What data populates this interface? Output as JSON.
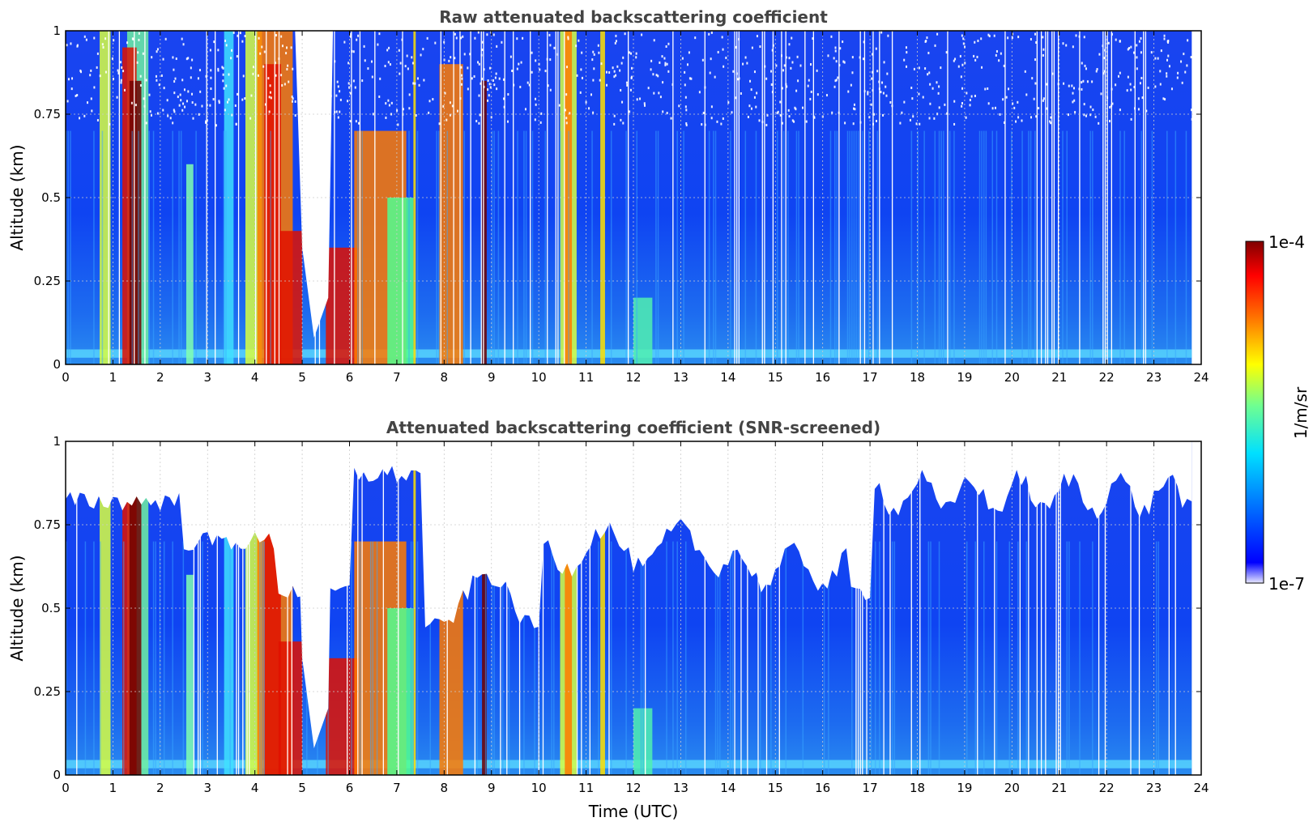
{
  "chart_data": [
    {
      "type": "heatmap",
      "title": "Raw attenuated backscattering coefficient",
      "xlabel": "",
      "ylabel": "Altitude (km)",
      "xlim": [
        0,
        24
      ],
      "ylim": [
        0,
        1
      ],
      "xticks": [
        "0",
        "1",
        "2",
        "3",
        "4",
        "5",
        "6",
        "7",
        "8",
        "9",
        "10",
        "11",
        "12",
        "13",
        "14",
        "15",
        "16",
        "17",
        "18",
        "19",
        "20",
        "21",
        "22",
        "23",
        "24"
      ],
      "yticks": [
        "0",
        "0.25",
        "0.5",
        "0.75",
        "1"
      ],
      "data_end_time": 23.8,
      "grid": true,
      "screened": false
    },
    {
      "type": "heatmap",
      "title": "Attenuated backscattering coefficient (SNR-screened)",
      "xlabel": "Time (UTC)",
      "ylabel": "Altitude (km)",
      "xlim": [
        0,
        24
      ],
      "ylim": [
        0,
        1
      ],
      "xticks": [
        "0",
        "1",
        "2",
        "3",
        "4",
        "5",
        "6",
        "7",
        "8",
        "9",
        "10",
        "11",
        "12",
        "13",
        "14",
        "15",
        "16",
        "17",
        "18",
        "19",
        "20",
        "21",
        "22",
        "23",
        "24"
      ],
      "yticks": [
        "0",
        "0.25",
        "0.5",
        "0.75",
        "1"
      ],
      "data_end_time": 23.8,
      "grid": true,
      "screened": true
    }
  ],
  "colorbar": {
    "max_label": "1e-4",
    "min_label": "1e-7",
    "unit_label": "1/m/sr",
    "scale": "log",
    "colormap": [
      "#e8e8ff",
      "#0000ff",
      "#0080ff",
      "#00ffff",
      "#80ff80",
      "#ffff00",
      "#ff8000",
      "#ff0000",
      "#800000"
    ]
  },
  "colors": {
    "background": "#0a3cf0",
    "boundary_layer": "#2a8cf0",
    "surface_band": "#5ad8ff",
    "aerosol_yellow": "#d8ff40",
    "aerosol_orange": "#ff7a00",
    "aerosol_red": "#e01000",
    "aerosol_dark": "#700000",
    "grid": "#cccccc"
  }
}
